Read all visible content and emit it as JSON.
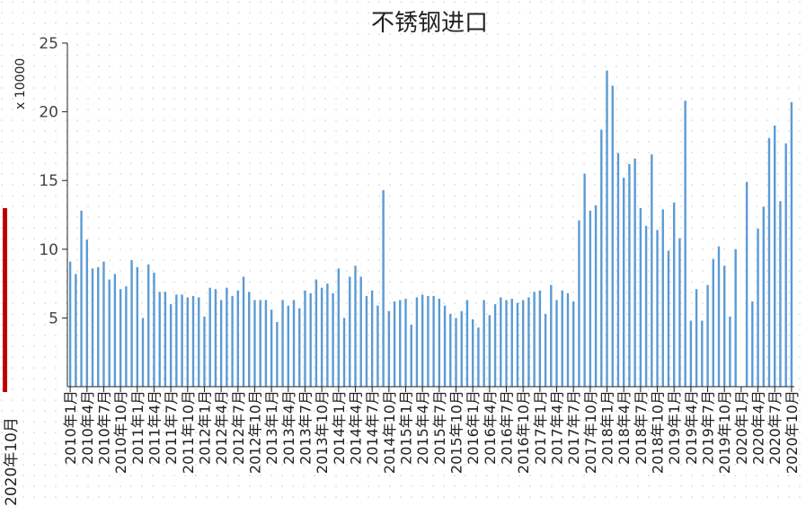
{
  "chart_data": {
    "type": "bar",
    "title": "不锈钢进口",
    "y_unit_label": "x 10000",
    "categories": [
      "2010年1月",
      null,
      null,
      "2010年4月",
      null,
      null,
      "2010年7月",
      null,
      null,
      "2010年10月",
      null,
      null,
      "2011年1月",
      null,
      null,
      "2011年4月",
      null,
      null,
      "2011年7月",
      null,
      null,
      "2011年10月",
      null,
      null,
      "2012年1月",
      null,
      null,
      "2012年4月",
      null,
      null,
      "2012年7月",
      null,
      null,
      "2012年10月",
      null,
      null,
      "2013年1月",
      null,
      null,
      "2013年4月",
      null,
      null,
      "2013年7月",
      null,
      null,
      "2013年10月",
      null,
      null,
      "2014年1月",
      null,
      null,
      "2014年4月",
      null,
      null,
      "2014年7月",
      null,
      null,
      "2014年10月",
      null,
      null,
      "2015年1月",
      null,
      null,
      "2015年4月",
      null,
      null,
      "2015年7月",
      null,
      null,
      "2015年10月",
      null,
      null,
      "2016年1月",
      null,
      null,
      "2016年4月",
      null,
      null,
      "2016年7月",
      null,
      null,
      "2016年10月",
      null,
      null,
      "2017年1月",
      null,
      null,
      "2017年4月",
      null,
      null,
      "2017年7月",
      null,
      null,
      "2017年10月",
      null,
      null,
      "2018年1月",
      null,
      null,
      "2018年4月",
      null,
      null,
      "2018年7月",
      null,
      null,
      "2018年10月",
      null,
      null,
      "2019年1月",
      null,
      null,
      "2019年4月",
      null,
      null,
      "2019年7月",
      null,
      null,
      "2019年10月",
      null,
      null,
      "2020年1月",
      null,
      null,
      "2020年4月",
      null,
      null,
      "2020年7月",
      null,
      null,
      "2020年10月"
    ],
    "values": [
      9.1,
      8.2,
      12.8,
      10.7,
      8.6,
      8.7,
      9.1,
      7.8,
      8.2,
      7.1,
      7.3,
      9.2,
      8.7,
      5.0,
      8.9,
      8.3,
      6.9,
      6.9,
      6.0,
      6.7,
      6.7,
      6.5,
      6.6,
      6.5,
      5.1,
      7.2,
      7.1,
      6.3,
      7.2,
      6.6,
      7.0,
      8.0,
      6.9,
      6.3,
      6.3,
      6.3,
      5.6,
      4.7,
      6.3,
      5.9,
      6.3,
      5.7,
      7.0,
      6.8,
      7.8,
      7.2,
      7.5,
      6.8,
      8.6,
      5.0,
      8.0,
      8.8,
      8.0,
      6.6,
      7.0,
      5.9,
      14.3,
      5.5,
      6.2,
      6.3,
      6.4,
      4.5,
      6.5,
      6.7,
      6.6,
      6.6,
      6.4,
      5.9,
      5.3,
      5.0,
      5.5,
      6.3,
      4.9,
      4.3,
      6.3,
      5.2,
      6.0,
      6.5,
      6.3,
      6.4,
      6.1,
      6.3,
      6.5,
      6.9,
      7.0,
      5.3,
      7.4,
      6.3,
      7.0,
      6.8,
      6.2,
      12.1,
      15.5,
      12.8,
      13.2,
      18.7,
      23.0,
      21.9,
      17.0,
      15.2,
      16.2,
      16.6,
      13.0,
      11.7,
      16.9,
      11.4,
      12.9,
      9.9,
      13.4,
      10.8,
      20.8,
      4.8,
      7.1,
      4.8,
      7.4,
      9.3,
      10.2,
      8.8,
      5.1,
      10.0,
      null,
      14.9,
      6.2,
      11.5,
      13.1,
      18.1,
      19.0,
      13.5,
      17.7,
      20.7
    ],
    "color": "#5b9bd5",
    "ylim": [
      0,
      25
    ],
    "yticks": [
      5,
      10,
      15,
      20,
      25
    ]
  },
  "slider": {
    "label": "2020年10月"
  }
}
